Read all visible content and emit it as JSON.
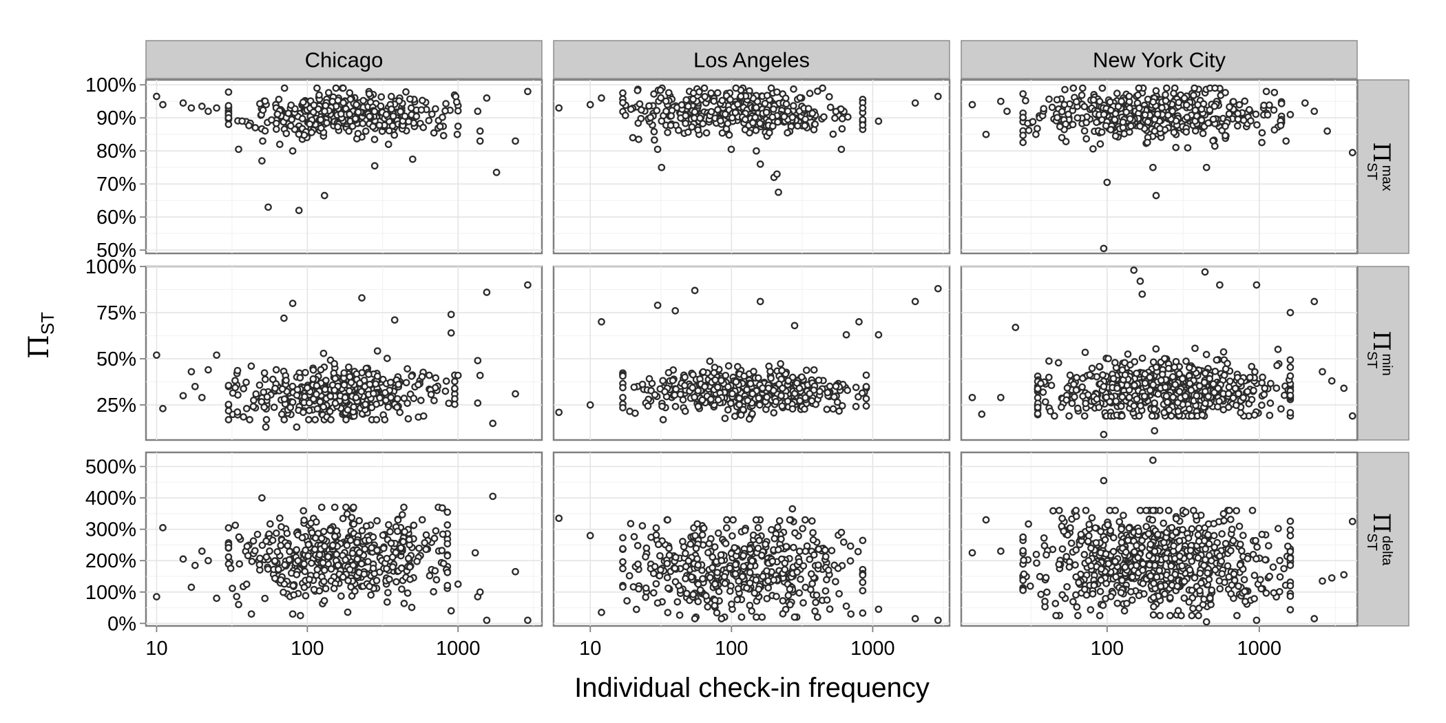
{
  "chart_data": {
    "type": "scatter",
    "facet_columns": [
      "Chicago",
      "Los Angeles",
      "New York City"
    ],
    "facet_rows": [
      {
        "key": "max",
        "symbol": "Π",
        "sub": "ST",
        "sup": "max"
      },
      {
        "key": "min",
        "symbol": "Π",
        "sub": "ST",
        "sup": "min"
      },
      {
        "key": "delta",
        "symbol": "Π",
        "sub": "ST",
        "sup": "delta"
      }
    ],
    "xlabel": "Individual check-in frequency",
    "ylabel": {
      "symbol": "Π",
      "sub": "ST"
    },
    "x_scale": "log10",
    "grid": true,
    "legend": "none",
    "x_axes": [
      {
        "facet": "Chicago",
        "range": [
          8.5,
          3600
        ],
        "ticks": [
          10,
          100,
          1000
        ],
        "tick_labels": [
          "10",
          "100",
          "1000"
        ]
      },
      {
        "facet": "Los Angeles",
        "range": [
          5.5,
          3500
        ],
        "ticks": [
          10,
          100,
          1000
        ],
        "tick_labels": [
          "10",
          "100",
          "1000"
        ]
      },
      {
        "facet": "New York City",
        "range": [
          11,
          4400
        ],
        "ticks": [
          100,
          1000
        ],
        "tick_labels": [
          "100",
          "1000"
        ]
      }
    ],
    "y_axes": [
      {
        "facet": "max",
        "range": [
          49,
          101.5
        ],
        "ticks": [
          50,
          60,
          70,
          80,
          90,
          100
        ],
        "tick_labels": [
          "50%",
          "60%",
          "70%",
          "80%",
          "90%",
          "100%"
        ]
      },
      {
        "facet": "min",
        "range": [
          6,
          100
        ],
        "ticks": [
          25,
          50,
          75,
          100
        ],
        "tick_labels": [
          "25%",
          "50%",
          "75%",
          "100%"
        ]
      },
      {
        "facet": "delta",
        "range": [
          -8,
          545
        ],
        "ticks": [
          0,
          100,
          200,
          300,
          400,
          500
        ],
        "tick_labels": [
          "0%",
          "100%",
          "200%",
          "300%",
          "400%",
          "500%"
        ]
      }
    ],
    "cloud_spec": {
      "Chicago|max": {
        "n": 380,
        "xmin": 30,
        "xmax": 1000,
        "ycenter": 91,
        "ysd": 3.5,
        "ylo": 82,
        "yhi": 99
      },
      "Los Angeles|max": {
        "n": 360,
        "xmin": 17,
        "xmax": 850,
        "ycenter": 92,
        "ysd": 3.5,
        "ylo": 80,
        "yhi": 99
      },
      "New York City|max": {
        "n": 460,
        "xmin": 28,
        "xmax": 1400,
        "ycenter": 91,
        "ysd": 3.7,
        "ylo": 78,
        "yhi": 99
      },
      "Chicago|min": {
        "n": 400,
        "xmin": 30,
        "xmax": 950,
        "ycenter": 31,
        "ysd": 7,
        "ylo": 17,
        "yhi": 58
      },
      "Los Angeles|min": {
        "n": 420,
        "xmin": 17,
        "xmax": 900,
        "ycenter": 32,
        "ysd": 6.5,
        "ylo": 17,
        "yhi": 55
      },
      "New York City|min": {
        "n": 620,
        "xmin": 35,
        "xmax": 1600,
        "ycenter": 33,
        "ysd": 8,
        "ylo": 19,
        "yhi": 62
      },
      "Chicago|delta": {
        "n": 480,
        "xmin": 30,
        "xmax": 850,
        "ycenter": 215,
        "ysd": 70,
        "ylo": 30,
        "yhi": 370
      },
      "Los Angeles|delta": {
        "n": 460,
        "xmin": 17,
        "xmax": 850,
        "ycenter": 180,
        "ysd": 68,
        "ylo": 20,
        "yhi": 330
      },
      "New York City|delta": {
        "n": 720,
        "xmin": 28,
        "xmax": 1600,
        "ycenter": 200,
        "ysd": 75,
        "ylo": 25,
        "yhi": 360
      }
    },
    "outliers": {
      "Chicago|max": [
        [
          10,
          96.5
        ],
        [
          11,
          94
        ],
        [
          15,
          94.5
        ],
        [
          17,
          93
        ],
        [
          20,
          93.5
        ],
        [
          22,
          92
        ],
        [
          25,
          93
        ],
        [
          35,
          80.5
        ],
        [
          50,
          77
        ],
        [
          55,
          63
        ],
        [
          88,
          62
        ],
        [
          80,
          80
        ],
        [
          130,
          66.5
        ],
        [
          280,
          75.5
        ],
        [
          500,
          77.5
        ],
        [
          1350,
          92
        ],
        [
          1400,
          86
        ],
        [
          1400,
          83
        ],
        [
          1550,
          96
        ],
        [
          1800,
          73.5
        ],
        [
          2400,
          83
        ],
        [
          2900,
          98
        ]
      ],
      "Los Angeles|max": [
        [
          6,
          93
        ],
        [
          10,
          94
        ],
        [
          12,
          96
        ],
        [
          20,
          84
        ],
        [
          22,
          83.5
        ],
        [
          30,
          80.5
        ],
        [
          32,
          75
        ],
        [
          150,
          80
        ],
        [
          160,
          76
        ],
        [
          200,
          72
        ],
        [
          210,
          73
        ],
        [
          215,
          67.5
        ],
        [
          600,
          80.5
        ],
        [
          1100,
          89
        ],
        [
          2000,
          94.5
        ],
        [
          2900,
          96.5
        ]
      ],
      "New York City|max": [
        [
          13,
          94
        ],
        [
          16,
          85
        ],
        [
          20,
          95
        ],
        [
          22,
          92
        ],
        [
          100,
          70.5
        ],
        [
          95,
          50.5
        ],
        [
          210,
          66.5
        ],
        [
          200,
          75
        ],
        [
          450,
          75
        ],
        [
          1500,
          83
        ],
        [
          1600,
          91
        ],
        [
          2000,
          94.5
        ],
        [
          2300,
          92
        ],
        [
          2800,
          86
        ],
        [
          4100,
          79.5
        ]
      ],
      "Chicago|min": [
        [
          10,
          52
        ],
        [
          11,
          23
        ],
        [
          15,
          30
        ],
        [
          17,
          43
        ],
        [
          18,
          35
        ],
        [
          20,
          29
        ],
        [
          22,
          44
        ],
        [
          25,
          52
        ],
        [
          53,
          13
        ],
        [
          85,
          13
        ],
        [
          70,
          72
        ],
        [
          80,
          80
        ],
        [
          230,
          83
        ],
        [
          380,
          71
        ],
        [
          900,
          74
        ],
        [
          900,
          64
        ],
        [
          1000,
          41
        ],
        [
          1350,
          49
        ],
        [
          1400,
          41
        ],
        [
          1350,
          26
        ],
        [
          1550,
          86
        ],
        [
          1700,
          15
        ],
        [
          2400,
          31
        ],
        [
          2900,
          90
        ]
      ],
      "Los Angeles|min": [
        [
          6,
          21
        ],
        [
          10,
          25
        ],
        [
          12,
          70
        ],
        [
          30,
          79
        ],
        [
          40,
          76
        ],
        [
          55,
          87
        ],
        [
          160,
          81
        ],
        [
          280,
          68
        ],
        [
          650,
          63
        ],
        [
          800,
          70
        ],
        [
          1100,
          63
        ],
        [
          2000,
          81
        ],
        [
          2900,
          88
        ]
      ],
      "New York City|min": [
        [
          13,
          29
        ],
        [
          15,
          20
        ],
        [
          20,
          29
        ],
        [
          25,
          67
        ],
        [
          95,
          9
        ],
        [
          150,
          98
        ],
        [
          165,
          92
        ],
        [
          170,
          85
        ],
        [
          205,
          11
        ],
        [
          440,
          97
        ],
        [
          550,
          90
        ],
        [
          960,
          90
        ],
        [
          1600,
          75
        ],
        [
          2300,
          81
        ],
        [
          2600,
          43
        ],
        [
          3000,
          38
        ],
        [
          3600,
          34
        ],
        [
          4100,
          19
        ]
      ],
      "Chicago|delta": [
        [
          10,
          85
        ],
        [
          11,
          305
        ],
        [
          15,
          205
        ],
        [
          17,
          115
        ],
        [
          18,
          185
        ],
        [
          20,
          230
        ],
        [
          22,
          200
        ],
        [
          25,
          80
        ],
        [
          35,
          60
        ],
        [
          50,
          400
        ],
        [
          80,
          30
        ],
        [
          90,
          25
        ],
        [
          900,
          40
        ],
        [
          1000,
          125
        ],
        [
          1300,
          225
        ],
        [
          1350,
          85
        ],
        [
          1400,
          100
        ],
        [
          1550,
          10
        ],
        [
          1700,
          405
        ],
        [
          2400,
          165
        ],
        [
          2900,
          10
        ]
      ],
      "Los Angeles|delta": [
        [
          6,
          335
        ],
        [
          10,
          280
        ],
        [
          12,
          35
        ],
        [
          22,
          110
        ],
        [
          25,
          240
        ],
        [
          30,
          65
        ],
        [
          55,
          15
        ],
        [
          85,
          15
        ],
        [
          150,
          20
        ],
        [
          270,
          365
        ],
        [
          600,
          290
        ],
        [
          650,
          55
        ],
        [
          700,
          30
        ],
        [
          1100,
          45
        ],
        [
          2000,
          15
        ],
        [
          2900,
          10
        ]
      ],
      "New York City|delta": [
        [
          13,
          225
        ],
        [
          16,
          330
        ],
        [
          20,
          230
        ],
        [
          95,
          455
        ],
        [
          200,
          520
        ],
        [
          450,
          5
        ],
        [
          960,
          10
        ],
        [
          1600,
          120
        ],
        [
          2300,
          15
        ],
        [
          2600,
          135
        ],
        [
          3000,
          145
        ],
        [
          3600,
          155
        ],
        [
          4100,
          325
        ]
      ]
    }
  }
}
